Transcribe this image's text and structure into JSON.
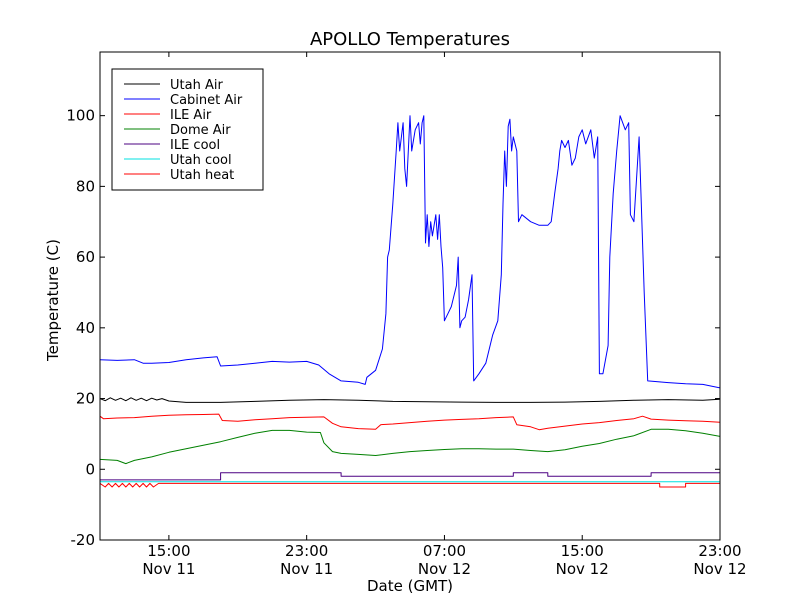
{
  "chart_data": {
    "type": "line",
    "title": "APOLLO Temperatures",
    "xlabel": "Date (GMT)",
    "ylabel": "Temperature (C)",
    "xlim": [
      11,
      47
    ],
    "ylim": [
      -20,
      118
    ],
    "yticks": [
      -20,
      0,
      20,
      40,
      60,
      80,
      100
    ],
    "xticks": [
      {
        "x": 15,
        "line1": "15:00",
        "line2": "Nov 11"
      },
      {
        "x": 23,
        "line1": "23:00",
        "line2": "Nov 11"
      },
      {
        "x": 31,
        "line1": "07:00",
        "line2": "Nov 12"
      },
      {
        "x": 39,
        "line1": "15:00",
        "line2": "Nov 12"
      },
      {
        "x": 47,
        "line1": "23:00",
        "line2": "Nov 12"
      }
    ],
    "x_unit": "hours since 00:00 Nov 11 (GMT)",
    "legend_position": "top-left",
    "series": [
      {
        "name": "Utah Air",
        "color": "#000000",
        "points": [
          [
            11,
            20
          ],
          [
            11.3,
            19.4
          ],
          [
            11.6,
            20.2
          ],
          [
            11.9,
            19.5
          ],
          [
            12.2,
            20.1
          ],
          [
            12.5,
            19.4
          ],
          [
            12.8,
            20.2
          ],
          [
            13.1,
            19.5
          ],
          [
            13.4,
            20.1
          ],
          [
            13.7,
            19.4
          ],
          [
            14,
            20.1
          ],
          [
            14.3,
            19.6
          ],
          [
            14.6,
            20
          ],
          [
            15,
            19.3
          ],
          [
            16,
            18.9
          ],
          [
            18,
            18.9
          ],
          [
            20,
            19.2
          ],
          [
            22,
            19.5
          ],
          [
            24,
            19.7
          ],
          [
            26,
            19.5
          ],
          [
            28,
            19.2
          ],
          [
            30,
            19.1
          ],
          [
            32,
            19
          ],
          [
            34,
            18.9
          ],
          [
            36,
            18.9
          ],
          [
            38,
            19
          ],
          [
            40,
            19.2
          ],
          [
            42,
            19.5
          ],
          [
            44,
            19.7
          ],
          [
            46,
            19.5
          ],
          [
            47,
            19.8
          ]
        ]
      },
      {
        "name": "Cabinet Air",
        "color": "#0000ff",
        "points": [
          [
            11,
            31
          ],
          [
            12,
            30.8
          ],
          [
            13,
            31
          ],
          [
            13.5,
            30
          ],
          [
            14,
            30
          ],
          [
            15,
            30.2
          ],
          [
            16,
            31
          ],
          [
            17,
            31.5
          ],
          [
            17.8,
            31.8
          ],
          [
            18,
            29.2
          ],
          [
            19,
            29.5
          ],
          [
            20,
            30
          ],
          [
            21,
            30.5
          ],
          [
            22,
            30.3
          ],
          [
            23,
            30.5
          ],
          [
            23.7,
            29.5
          ],
          [
            24.3,
            27
          ],
          [
            25,
            25
          ],
          [
            26,
            24.6
          ],
          [
            26.4,
            24
          ],
          [
            26.5,
            26
          ],
          [
            27,
            28
          ],
          [
            27.4,
            34
          ],
          [
            27.6,
            44
          ],
          [
            27.7,
            60
          ],
          [
            27.8,
            62
          ],
          [
            28,
            75
          ],
          [
            28.2,
            90
          ],
          [
            28.3,
            98
          ],
          [
            28.4,
            90
          ],
          [
            28.6,
            98
          ],
          [
            28.7,
            85
          ],
          [
            28.8,
            80
          ],
          [
            28.9,
            90
          ],
          [
            29,
            100
          ],
          [
            29.1,
            90
          ],
          [
            29.3,
            96
          ],
          [
            29.5,
            98
          ],
          [
            29.6,
            92
          ],
          [
            29.7,
            98
          ],
          [
            29.8,
            100
          ],
          [
            29.9,
            64
          ],
          [
            30,
            72
          ],
          [
            30.1,
            63
          ],
          [
            30.2,
            70
          ],
          [
            30.3,
            66
          ],
          [
            30.5,
            72
          ],
          [
            30.6,
            65
          ],
          [
            30.7,
            72
          ],
          [
            30.8,
            63
          ],
          [
            30.9,
            57
          ],
          [
            31,
            42
          ],
          [
            31.2,
            44
          ],
          [
            31.4,
            46
          ],
          [
            31.7,
            52
          ],
          [
            31.8,
            60
          ],
          [
            31.9,
            40
          ],
          [
            32,
            42
          ],
          [
            32.2,
            43
          ],
          [
            32.4,
            48
          ],
          [
            32.6,
            55
          ],
          [
            32.7,
            25
          ],
          [
            33,
            27
          ],
          [
            33.4,
            30
          ],
          [
            33.8,
            38
          ],
          [
            34.1,
            42
          ],
          [
            34.3,
            55
          ],
          [
            34.4,
            75
          ],
          [
            34.5,
            90
          ],
          [
            34.6,
            80
          ],
          [
            34.7,
            97
          ],
          [
            34.8,
            99
          ],
          [
            34.9,
            90
          ],
          [
            35,
            94
          ],
          [
            35.2,
            90
          ],
          [
            35.3,
            70
          ],
          [
            35.5,
            72
          ],
          [
            36,
            70
          ],
          [
            36.5,
            69
          ],
          [
            37,
            69
          ],
          [
            37.2,
            70
          ],
          [
            37.4,
            78
          ],
          [
            37.6,
            85
          ],
          [
            37.7,
            90
          ],
          [
            37.8,
            93
          ],
          [
            38,
            91
          ],
          [
            38.2,
            93
          ],
          [
            38.4,
            86
          ],
          [
            38.6,
            88
          ],
          [
            38.8,
            94
          ],
          [
            39,
            96
          ],
          [
            39.2,
            92
          ],
          [
            39.5,
            96
          ],
          [
            39.7,
            88
          ],
          [
            39.9,
            94
          ],
          [
            40,
            27
          ],
          [
            40.2,
            27
          ],
          [
            40.5,
            35
          ],
          [
            40.6,
            60
          ],
          [
            40.8,
            78
          ],
          [
            41,
            90
          ],
          [
            41.2,
            100
          ],
          [
            41.5,
            96
          ],
          [
            41.7,
            98
          ],
          [
            41.8,
            72
          ],
          [
            42,
            70
          ],
          [
            42.3,
            94
          ],
          [
            42.6,
            50
          ],
          [
            42.8,
            25
          ],
          [
            44,
            24.5
          ],
          [
            45,
            24.2
          ],
          [
            46,
            24
          ],
          [
            47,
            23
          ]
        ]
      },
      {
        "name": "ILE Air",
        "color": "#ff0000",
        "points": [
          [
            11,
            15
          ],
          [
            11.2,
            14.3
          ],
          [
            12,
            14.5
          ],
          [
            13,
            14.6
          ],
          [
            14,
            15
          ],
          [
            15,
            15.3
          ],
          [
            16,
            15.4
          ],
          [
            17,
            15.5
          ],
          [
            17.9,
            15.6
          ],
          [
            18.1,
            13.8
          ],
          [
            19,
            13.6
          ],
          [
            20,
            14
          ],
          [
            21,
            14.3
          ],
          [
            22,
            14.6
          ],
          [
            23,
            14.7
          ],
          [
            24,
            14.8
          ],
          [
            24.5,
            13
          ],
          [
            25,
            12
          ],
          [
            26,
            11.5
          ],
          [
            27,
            11.3
          ],
          [
            27.3,
            12.6
          ],
          [
            28,
            12.8
          ],
          [
            29,
            13.2
          ],
          [
            30,
            13.6
          ],
          [
            31,
            13.9
          ],
          [
            32,
            14.1
          ],
          [
            33,
            14.3
          ],
          [
            34,
            14.6
          ],
          [
            35,
            14.8
          ],
          [
            35.2,
            12.6
          ],
          [
            36,
            12
          ],
          [
            36.5,
            11.2
          ],
          [
            37,
            11.6
          ],
          [
            38,
            12.2
          ],
          [
            39,
            12.8
          ],
          [
            40,
            13.2
          ],
          [
            41,
            13.8
          ],
          [
            42,
            14.3
          ],
          [
            42.5,
            15
          ],
          [
            43,
            14.2
          ],
          [
            44,
            13.9
          ],
          [
            45,
            13.7
          ],
          [
            46,
            13.6
          ],
          [
            47,
            13.3
          ]
        ]
      },
      {
        "name": "Dome Air",
        "color": "#008000",
        "points": [
          [
            11,
            2.8
          ],
          [
            12,
            2.5
          ],
          [
            12.5,
            1.6
          ],
          [
            13,
            2.5
          ],
          [
            14,
            3.5
          ],
          [
            15,
            4.8
          ],
          [
            16,
            5.8
          ],
          [
            17,
            6.8
          ],
          [
            18,
            7.8
          ],
          [
            19,
            9
          ],
          [
            20,
            10.2
          ],
          [
            21,
            11
          ],
          [
            22,
            11
          ],
          [
            23,
            10.5
          ],
          [
            23.8,
            10.4
          ],
          [
            24,
            7.5
          ],
          [
            24.5,
            5
          ],
          [
            25,
            4.5
          ],
          [
            26,
            4.2
          ],
          [
            27,
            3.9
          ],
          [
            28,
            4.5
          ],
          [
            29,
            5
          ],
          [
            30,
            5.3
          ],
          [
            31,
            5.6
          ],
          [
            32,
            5.8
          ],
          [
            33,
            5.8
          ],
          [
            34,
            5.7
          ],
          [
            35,
            5.7
          ],
          [
            36,
            5.3
          ],
          [
            37,
            5
          ],
          [
            38,
            5.5
          ],
          [
            39,
            6.5
          ],
          [
            40,
            7.3
          ],
          [
            41,
            8.5
          ],
          [
            42,
            9.5
          ],
          [
            43,
            11.3
          ],
          [
            44,
            11.3
          ],
          [
            45,
            10.9
          ],
          [
            46,
            10.2
          ],
          [
            47,
            9.3
          ]
        ]
      },
      {
        "name": "ILE cool",
        "color": "#4b0082",
        "points": [
          [
            11,
            -3
          ],
          [
            18,
            -3
          ],
          [
            18,
            -1
          ],
          [
            25,
            -1
          ],
          [
            25,
            -2
          ],
          [
            35,
            -2
          ],
          [
            35,
            -1
          ],
          [
            37,
            -1
          ],
          [
            37,
            -2
          ],
          [
            43,
            -2
          ],
          [
            43,
            -1
          ],
          [
            47,
            -1
          ]
        ]
      },
      {
        "name": "Utah cool",
        "color": "#00e0e0",
        "points": [
          [
            11,
            -3.5
          ],
          [
            47,
            -3.5
          ]
        ]
      },
      {
        "name": "Utah heat",
        "color": "#ff0000",
        "points": [
          [
            11,
            -4
          ],
          [
            11.3,
            -5
          ],
          [
            11.5,
            -4
          ],
          [
            11.7,
            -5
          ],
          [
            11.9,
            -4
          ],
          [
            12.1,
            -5
          ],
          [
            12.3,
            -4
          ],
          [
            12.5,
            -5
          ],
          [
            12.7,
            -4
          ],
          [
            12.9,
            -5
          ],
          [
            13.1,
            -4
          ],
          [
            13.3,
            -5
          ],
          [
            13.5,
            -4
          ],
          [
            13.7,
            -5
          ],
          [
            13.9,
            -4
          ],
          [
            14.1,
            -5
          ],
          [
            14.4,
            -4
          ],
          [
            43.5,
            -4
          ],
          [
            43.5,
            -5
          ],
          [
            45,
            -5
          ],
          [
            45,
            -4
          ],
          [
            47,
            -4
          ]
        ]
      }
    ]
  }
}
